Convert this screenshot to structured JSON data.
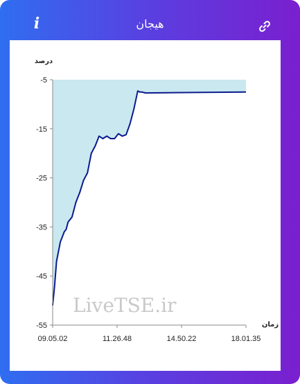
{
  "header": {
    "title": "هیجان",
    "info_icon": "info-icon",
    "link_icon": "link-icon"
  },
  "colors": {
    "gradient_start": "#2f6ef0",
    "gradient_end": "#7a1fcf",
    "line": "#0a1a8c",
    "area": "#c9e8f0"
  },
  "chart_data": {
    "type": "area",
    "ylabel": "درصد",
    "xlabel": "زمان",
    "ylim": [
      -55,
      -5
    ],
    "yticks": [
      -5,
      -15,
      -25,
      -35,
      -45,
      -55
    ],
    "ytick_labels": [
      "-5",
      "-15",
      "-25",
      "-35",
      "-45",
      "-55"
    ],
    "xticks": [
      "09.05.02",
      "11.26.48",
      "14.50.22",
      "18.01.35"
    ],
    "series": [
      {
        "x": [
          0,
          0.01,
          0.02,
          0.03,
          0.04,
          0.05,
          0.06,
          0.07,
          0.08,
          0.1,
          0.12,
          0.14,
          0.16,
          0.18,
          0.2,
          0.22,
          0.24,
          0.26,
          0.28,
          0.3,
          0.32,
          0.34,
          0.36,
          0.38,
          0.4,
          0.42,
          0.44,
          0.45,
          0.46,
          0.47,
          0.48,
          1.0
        ],
        "y": [
          -51,
          -47,
          -42,
          -40,
          -38,
          -37,
          -36,
          -35.5,
          -34,
          -33,
          -30,
          -28,
          -25.5,
          -24,
          -20,
          -18.5,
          -16.5,
          -17,
          -16.5,
          -17,
          -17,
          -16,
          -16.5,
          -16.2,
          -14,
          -11,
          -7.3,
          -7.5,
          -7.5,
          -7.6,
          -7.7,
          -7.5
        ]
      }
    ],
    "grid": false
  },
  "watermark": "LiveTSE.ir"
}
